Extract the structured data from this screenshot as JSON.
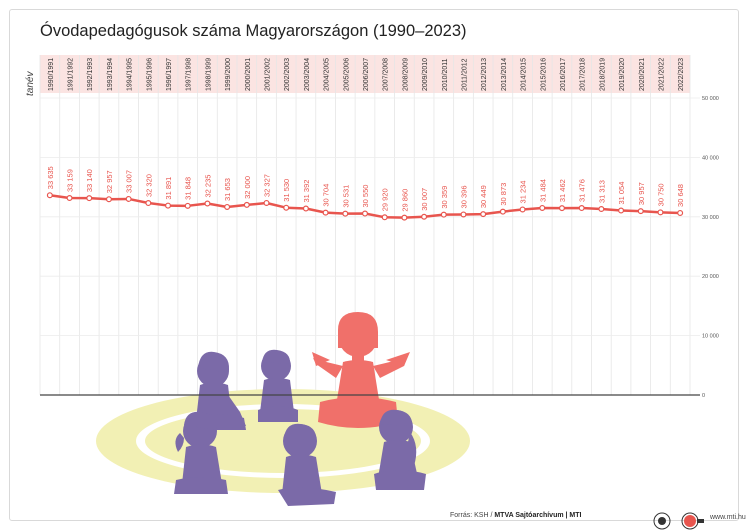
{
  "chart_data": {
    "type": "line",
    "title": "Óvodapedagógusok száma Magyarországon (1990–2023)",
    "xlabel": "tanév",
    "ylabel": "",
    "categories": [
      "1990/1991",
      "1991/1992",
      "1992/1993",
      "1993/1994",
      "1994/1995",
      "1995/1996",
      "1996/1997",
      "1997/1998",
      "1998/1999",
      "1999/2000",
      "2000/2001",
      "2001/2002",
      "2002/2003",
      "2003/2004",
      "2004/2005",
      "2005/2006",
      "2006/2007",
      "2007/2008",
      "2008/2009",
      "2009/2010",
      "2010/2011",
      "2011/2012",
      "2012/2013",
      "2013/2014",
      "2014/2015",
      "2015/2016",
      "2016/2017",
      "2017/2018",
      "2018/2019",
      "2019/2020",
      "2020/2021",
      "2021/2022",
      "2022/2023"
    ],
    "values": [
      33635,
      33159,
      33140,
      32957,
      33007,
      32320,
      31891,
      31848,
      32235,
      31653,
      32000,
      32327,
      31530,
      31392,
      30704,
      30531,
      30550,
      29920,
      29860,
      30007,
      30359,
      30396,
      30449,
      30873,
      31234,
      31484,
      31462,
      31476,
      31313,
      31054,
      30957,
      30750,
      30648
    ],
    "value_labels": [
      "33 635",
      "33 159",
      "33 140",
      "32 957",
      "33 007",
      "32 320",
      "31 891",
      "31 848",
      "32 235",
      "31 653",
      "32 000",
      "32 327",
      "31 530",
      "31 392",
      "30 704",
      "30 531",
      "30 550",
      "29 920",
      "29 860",
      "30 007",
      "30 359",
      "30 396",
      "30 449",
      "30 873",
      "31 234",
      "31 484",
      "31 462",
      "31 476",
      "31 313",
      "31 054",
      "30 957",
      "30 750",
      "30 648"
    ],
    "ylim": [
      0,
      50000
    ],
    "yticks": [
      0,
      10000,
      20000,
      30000,
      40000,
      50000
    ],
    "ytick_labels": [
      "0",
      "10 000",
      "20 000",
      "30 000",
      "40 000",
      "50 000"
    ],
    "grid": true,
    "line_color": "#e8554e",
    "label_color": "#e8554e",
    "header_band_color": "#fbe4e2"
  },
  "footer": {
    "source_prefix": "Forrás: KSH / ",
    "source_bold": "MTVA Sajtóarchívum | MTI",
    "website": "www.mti.hu"
  },
  "illustration": {
    "teacher_color": "#f0706a",
    "children_color": "#7b6aa8",
    "rug_color": "#f2f0b4"
  }
}
